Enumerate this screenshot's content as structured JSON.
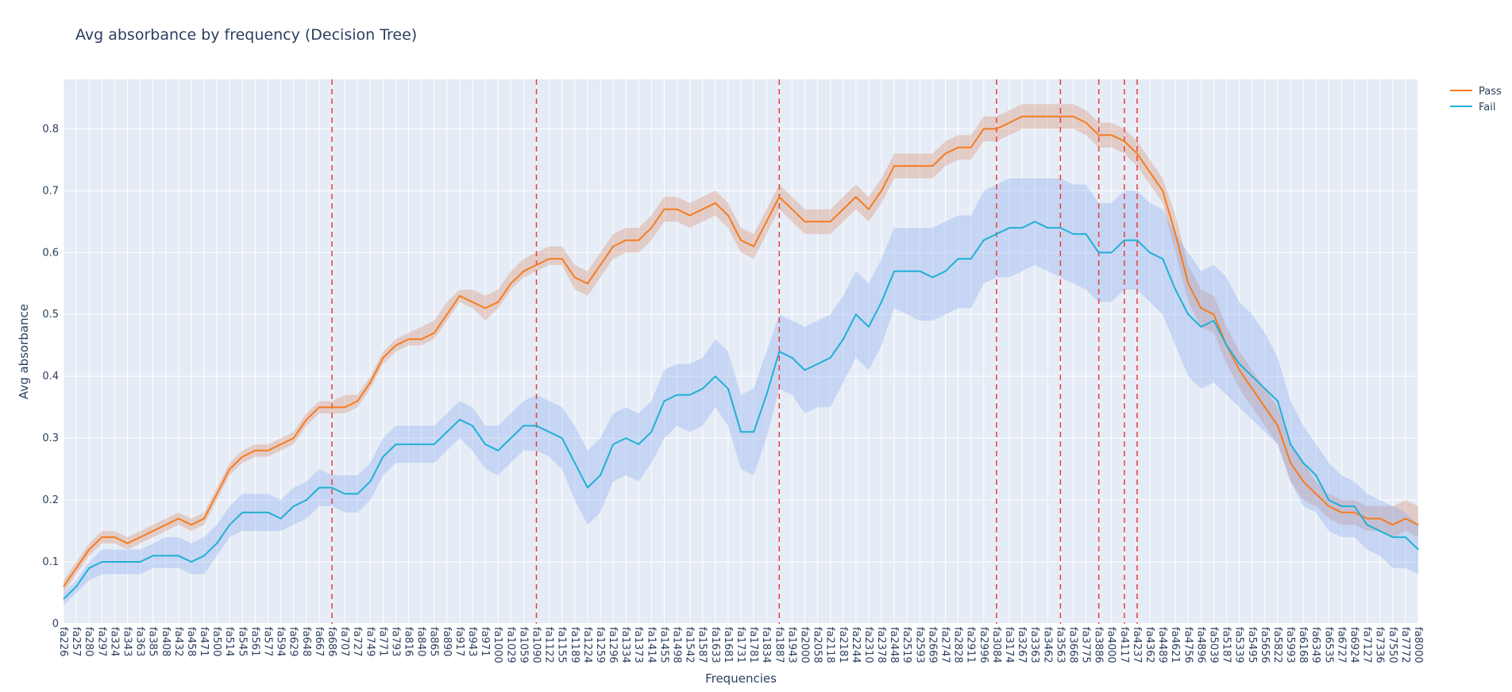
{
  "chart_data": {
    "type": "line",
    "title": "Avg absorbance by frequency (Decision Tree)",
    "xlabel": "Frequencies",
    "ylabel": "Avg absorbance",
    "ylim": [
      0,
      0.88
    ],
    "yticks": [
      0,
      0.1,
      0.2,
      0.3,
      0.4,
      0.5,
      0.6,
      0.7,
      0.8
    ],
    "grid": true,
    "legend_position": "top-right",
    "plot_background": "#e5ecf6",
    "categories": [
      "fa226",
      "fa257",
      "fa280",
      "fa297",
      "fa324",
      "fa343",
      "fa363",
      "fa385",
      "fa408",
      "fa432",
      "fa458",
      "fa471",
      "fa500",
      "fa514",
      "fa545",
      "fa561",
      "fa577",
      "fa594",
      "fa629",
      "fa648",
      "fa667",
      "fa686",
      "fa707",
      "fa727",
      "fa749",
      "fa771",
      "fa793",
      "fa816",
      "fa840",
      "fa865",
      "fa890",
      "fa917",
      "fa943",
      "fa971",
      "fa1000",
      "fa1029",
      "fa1059",
      "fa1090",
      "fa1122",
      "fa1155",
      "fa1189",
      "fa1224",
      "fa1259",
      "fa1296",
      "fa1334",
      "fa1373",
      "fa1414",
      "fa1455",
      "fa1498",
      "fa1542",
      "fa1587",
      "fa1633",
      "fa1681",
      "fa1731",
      "fa1781",
      "fa1834",
      "fa1887",
      "fa1943",
      "fa2000",
      "fa2058",
      "fa2118",
      "fa2181",
      "fa2244",
      "fa2310",
      "fa2378",
      "fa2448",
      "fa2519",
      "fa2593",
      "fa2669",
      "fa2747",
      "fa2828",
      "fa2911",
      "fa2996",
      "fa3084",
      "fa3174",
      "fa3267",
      "fa3363",
      "fa3462",
      "fa3563",
      "fa3668",
      "fa3775",
      "fa3886",
      "fa4000",
      "fa4117",
      "fa4237",
      "fa4362",
      "fa4489",
      "fa4621",
      "fa4756",
      "fa4896",
      "fa5039",
      "fa5187",
      "fa5339",
      "fa5495",
      "fa5656",
      "fa5822",
      "fa5993",
      "fa6168",
      "fa6349",
      "fa6535",
      "fa6727",
      "fa6924",
      "fa7127",
      "fa7336",
      "fa7550",
      "fa7772",
      "fa8000"
    ],
    "series": [
      {
        "name": "Pass",
        "color": "#f57c1f",
        "band_color": "rgba(214,120,80,0.28)",
        "values": [
          0.06,
          0.09,
          0.12,
          0.14,
          0.14,
          0.13,
          0.14,
          0.15,
          0.16,
          0.17,
          0.16,
          0.17,
          0.21,
          0.25,
          0.27,
          0.28,
          0.28,
          0.29,
          0.3,
          0.33,
          0.35,
          0.35,
          0.35,
          0.36,
          0.39,
          0.43,
          0.45,
          0.46,
          0.46,
          0.47,
          0.5,
          0.53,
          0.52,
          0.51,
          0.52,
          0.55,
          0.57,
          0.58,
          0.59,
          0.59,
          0.56,
          0.55,
          0.58,
          0.61,
          0.62,
          0.62,
          0.64,
          0.67,
          0.67,
          0.66,
          0.67,
          0.68,
          0.66,
          0.62,
          0.61,
          0.65,
          0.69,
          0.67,
          0.65,
          0.65,
          0.65,
          0.67,
          0.69,
          0.67,
          0.7,
          0.74,
          0.74,
          0.74,
          0.74,
          0.76,
          0.77,
          0.77,
          0.8,
          0.8,
          0.81,
          0.82,
          0.82,
          0.82,
          0.82,
          0.82,
          0.81,
          0.79,
          0.79,
          0.78,
          0.76,
          0.73,
          0.7,
          0.63,
          0.55,
          0.51,
          0.5,
          0.45,
          0.41,
          0.38,
          0.35,
          0.32,
          0.26,
          0.23,
          0.21,
          0.19,
          0.18,
          0.18,
          0.17,
          0.17,
          0.16,
          0.17,
          0.16
        ],
        "lower": [
          0.05,
          0.08,
          0.11,
          0.13,
          0.13,
          0.12,
          0.13,
          0.14,
          0.15,
          0.16,
          0.15,
          0.16,
          0.2,
          0.24,
          0.26,
          0.27,
          0.27,
          0.28,
          0.29,
          0.32,
          0.34,
          0.34,
          0.34,
          0.35,
          0.38,
          0.42,
          0.44,
          0.45,
          0.45,
          0.46,
          0.49,
          0.52,
          0.51,
          0.49,
          0.51,
          0.54,
          0.56,
          0.57,
          0.58,
          0.58,
          0.54,
          0.53,
          0.56,
          0.59,
          0.6,
          0.6,
          0.62,
          0.65,
          0.65,
          0.64,
          0.65,
          0.66,
          0.64,
          0.6,
          0.59,
          0.63,
          0.67,
          0.65,
          0.63,
          0.63,
          0.63,
          0.65,
          0.67,
          0.65,
          0.68,
          0.72,
          0.72,
          0.72,
          0.72,
          0.74,
          0.75,
          0.75,
          0.78,
          0.78,
          0.79,
          0.8,
          0.8,
          0.8,
          0.8,
          0.8,
          0.79,
          0.77,
          0.77,
          0.76,
          0.74,
          0.71,
          0.68,
          0.6,
          0.52,
          0.48,
          0.47,
          0.42,
          0.38,
          0.35,
          0.32,
          0.29,
          0.23,
          0.2,
          0.19,
          0.17,
          0.16,
          0.16,
          0.15,
          0.15,
          0.14,
          0.15,
          0.14
        ],
        "upper": [
          0.07,
          0.1,
          0.13,
          0.15,
          0.15,
          0.14,
          0.15,
          0.16,
          0.17,
          0.18,
          0.17,
          0.18,
          0.22,
          0.26,
          0.28,
          0.29,
          0.29,
          0.3,
          0.31,
          0.34,
          0.36,
          0.36,
          0.37,
          0.37,
          0.4,
          0.44,
          0.46,
          0.47,
          0.48,
          0.49,
          0.52,
          0.54,
          0.54,
          0.53,
          0.54,
          0.57,
          0.59,
          0.6,
          0.61,
          0.61,
          0.58,
          0.57,
          0.6,
          0.63,
          0.64,
          0.64,
          0.66,
          0.69,
          0.69,
          0.68,
          0.69,
          0.7,
          0.68,
          0.64,
          0.63,
          0.67,
          0.71,
          0.69,
          0.67,
          0.67,
          0.67,
          0.69,
          0.71,
          0.69,
          0.72,
          0.76,
          0.76,
          0.76,
          0.76,
          0.78,
          0.79,
          0.79,
          0.82,
          0.82,
          0.83,
          0.84,
          0.84,
          0.84,
          0.84,
          0.84,
          0.83,
          0.81,
          0.81,
          0.8,
          0.78,
          0.75,
          0.72,
          0.66,
          0.58,
          0.54,
          0.53,
          0.48,
          0.44,
          0.41,
          0.38,
          0.35,
          0.29,
          0.26,
          0.23,
          0.21,
          0.2,
          0.2,
          0.19,
          0.19,
          0.19,
          0.2,
          0.19
        ]
      },
      {
        "name": "Fail",
        "color": "#1fb0d6",
        "band_color": "rgba(130,165,235,0.32)",
        "values": [
          0.04,
          0.06,
          0.09,
          0.1,
          0.1,
          0.1,
          0.1,
          0.11,
          0.11,
          0.11,
          0.1,
          0.11,
          0.13,
          0.16,
          0.18,
          0.18,
          0.18,
          0.17,
          0.19,
          0.2,
          0.22,
          0.22,
          0.21,
          0.21,
          0.23,
          0.27,
          0.29,
          0.29,
          0.29,
          0.29,
          0.31,
          0.33,
          0.32,
          0.29,
          0.28,
          0.3,
          0.32,
          0.32,
          0.31,
          0.3,
          0.26,
          0.22,
          0.24,
          0.29,
          0.3,
          0.29,
          0.31,
          0.36,
          0.37,
          0.37,
          0.38,
          0.4,
          0.38,
          0.31,
          0.31,
          0.37,
          0.44,
          0.43,
          0.41,
          0.42,
          0.43,
          0.46,
          0.5,
          0.48,
          0.52,
          0.57,
          0.57,
          0.57,
          0.56,
          0.57,
          0.59,
          0.59,
          0.62,
          0.63,
          0.64,
          0.64,
          0.65,
          0.64,
          0.64,
          0.63,
          0.63,
          0.6,
          0.6,
          0.62,
          0.62,
          0.6,
          0.59,
          0.54,
          0.5,
          0.48,
          0.49,
          0.45,
          0.42,
          0.4,
          0.38,
          0.36,
          0.29,
          0.26,
          0.24,
          0.2,
          0.19,
          0.19,
          0.16,
          0.15,
          0.14,
          0.14,
          0.12
        ],
        "lower": [
          0.03,
          0.05,
          0.07,
          0.08,
          0.08,
          0.08,
          0.08,
          0.09,
          0.09,
          0.09,
          0.08,
          0.08,
          0.11,
          0.14,
          0.15,
          0.15,
          0.15,
          0.15,
          0.16,
          0.17,
          0.19,
          0.19,
          0.18,
          0.18,
          0.2,
          0.24,
          0.26,
          0.26,
          0.26,
          0.26,
          0.28,
          0.3,
          0.28,
          0.25,
          0.24,
          0.26,
          0.28,
          0.28,
          0.27,
          0.25,
          0.2,
          0.16,
          0.18,
          0.23,
          0.24,
          0.23,
          0.26,
          0.3,
          0.32,
          0.31,
          0.32,
          0.35,
          0.32,
          0.25,
          0.24,
          0.3,
          0.38,
          0.37,
          0.34,
          0.35,
          0.35,
          0.39,
          0.43,
          0.41,
          0.45,
          0.51,
          0.5,
          0.49,
          0.49,
          0.5,
          0.51,
          0.51,
          0.55,
          0.56,
          0.56,
          0.57,
          0.58,
          0.57,
          0.56,
          0.55,
          0.54,
          0.52,
          0.52,
          0.54,
          0.54,
          0.52,
          0.5,
          0.45,
          0.4,
          0.38,
          0.39,
          0.37,
          0.35,
          0.33,
          0.31,
          0.29,
          0.23,
          0.19,
          0.18,
          0.15,
          0.14,
          0.14,
          0.12,
          0.11,
          0.09,
          0.09,
          0.08
        ],
        "upper": [
          0.05,
          0.07,
          0.1,
          0.12,
          0.12,
          0.12,
          0.12,
          0.13,
          0.14,
          0.14,
          0.13,
          0.14,
          0.16,
          0.19,
          0.21,
          0.21,
          0.21,
          0.2,
          0.22,
          0.23,
          0.25,
          0.24,
          0.24,
          0.24,
          0.26,
          0.3,
          0.32,
          0.32,
          0.32,
          0.32,
          0.34,
          0.36,
          0.35,
          0.32,
          0.32,
          0.34,
          0.36,
          0.37,
          0.36,
          0.35,
          0.32,
          0.28,
          0.3,
          0.34,
          0.35,
          0.34,
          0.36,
          0.41,
          0.42,
          0.42,
          0.43,
          0.46,
          0.44,
          0.37,
          0.38,
          0.44,
          0.5,
          0.49,
          0.48,
          0.49,
          0.5,
          0.53,
          0.57,
          0.55,
          0.59,
          0.64,
          0.64,
          0.64,
          0.64,
          0.65,
          0.66,
          0.66,
          0.7,
          0.71,
          0.72,
          0.72,
          0.72,
          0.72,
          0.72,
          0.71,
          0.71,
          0.68,
          0.68,
          0.7,
          0.7,
          0.68,
          0.67,
          0.63,
          0.6,
          0.57,
          0.58,
          0.56,
          0.52,
          0.5,
          0.47,
          0.43,
          0.36,
          0.32,
          0.29,
          0.26,
          0.24,
          0.23,
          0.21,
          0.2,
          0.19,
          0.18,
          0.16
        ]
      }
    ],
    "vlines": [
      "fa686",
      "fa1090",
      "fa1887",
      "fa3084",
      "fa3563",
      "fa3886",
      "fa4117",
      "fa4237"
    ],
    "vline_color": "#e8413a"
  }
}
